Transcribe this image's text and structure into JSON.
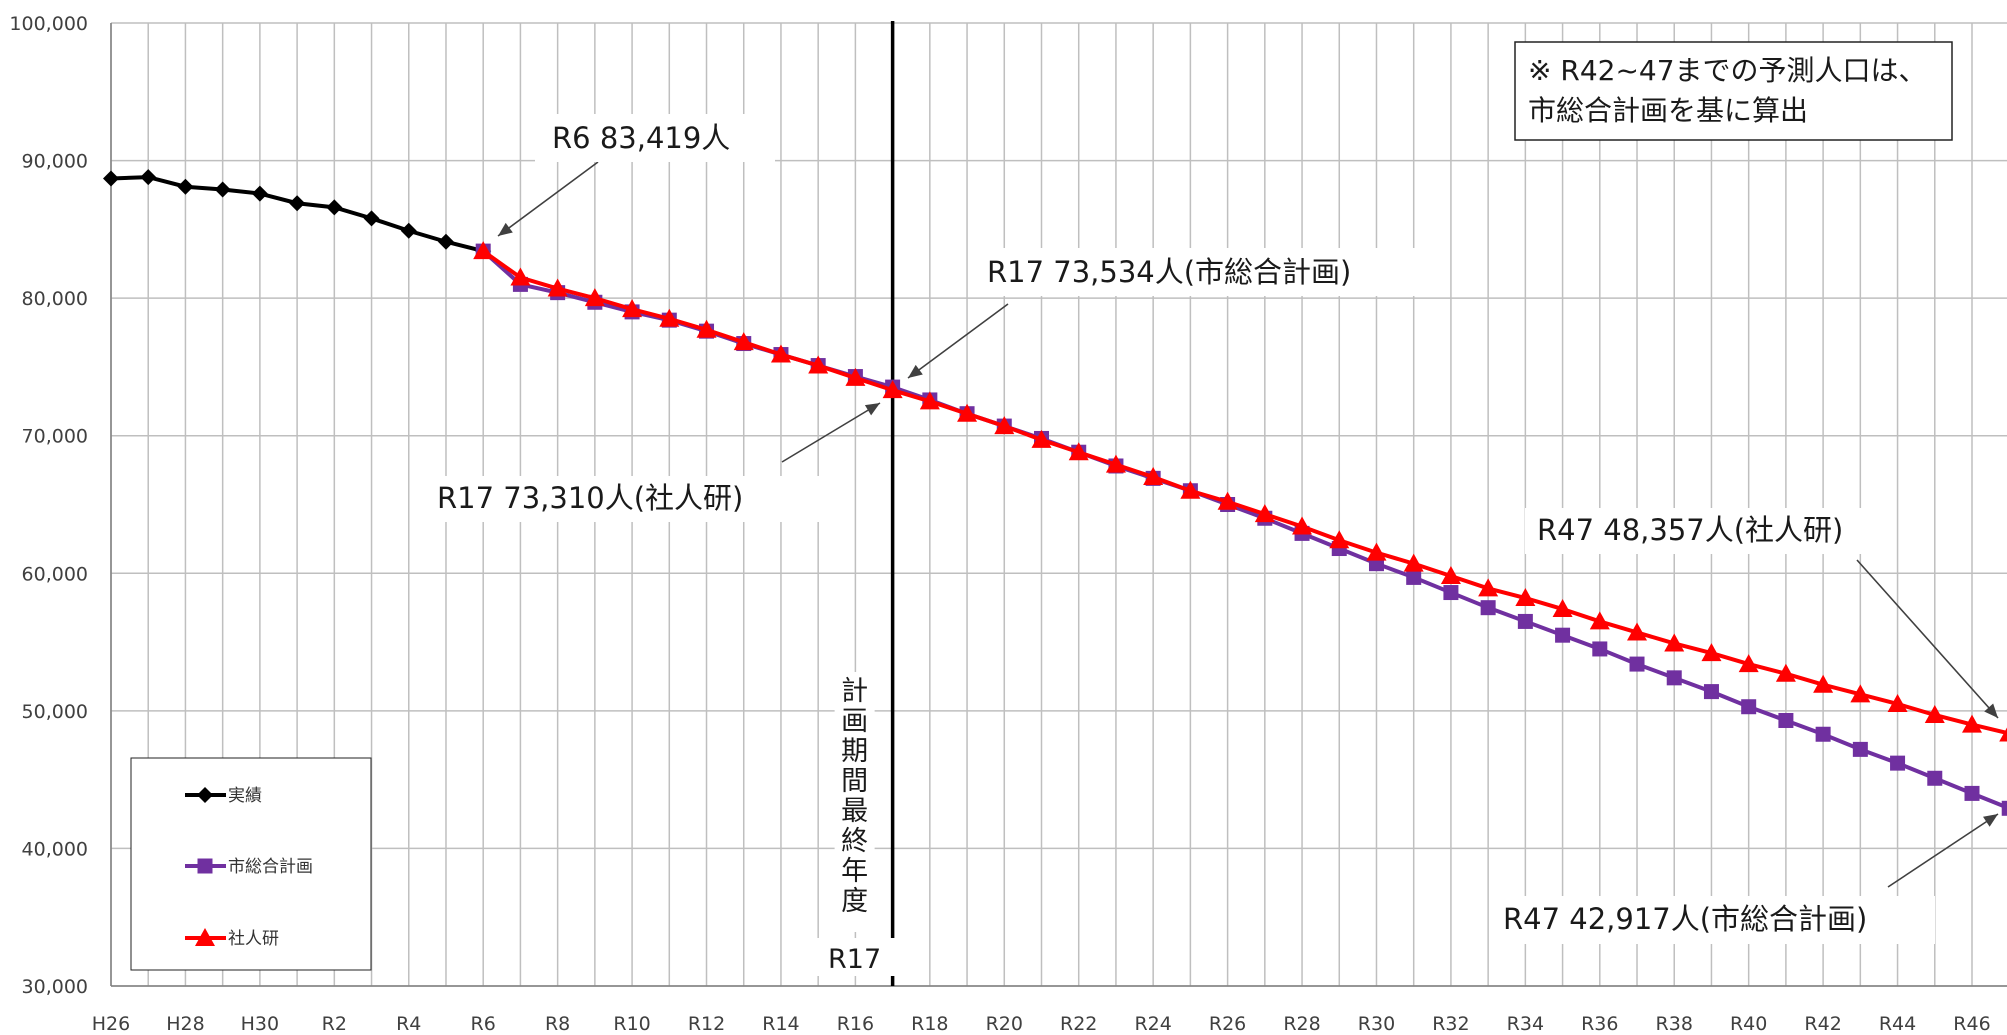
{
  "chart_data": {
    "type": "line",
    "title": "",
    "xlabel": "",
    "ylabel": "",
    "ylim": [
      30000,
      100000
    ],
    "yticks": [
      "30,000",
      "40,000",
      "50,000",
      "60,000",
      "70,000",
      "80,000",
      "90,000",
      "100,000"
    ],
    "x": [
      "H26",
      "H27",
      "H28",
      "H29",
      "H30",
      "R1",
      "R2",
      "R3",
      "R4",
      "R5",
      "R6",
      "R7",
      "R8",
      "R9",
      "R10",
      "R11",
      "R12",
      "R13",
      "R14",
      "R15",
      "R16",
      "R17",
      "R18",
      "R19",
      "R20",
      "R21",
      "R22",
      "R23",
      "R24",
      "R25",
      "R26",
      "R27",
      "R28",
      "R29",
      "R30",
      "R31",
      "R32",
      "R33",
      "R34",
      "R35",
      "R36",
      "R37",
      "R38",
      "R39",
      "R40",
      "R41",
      "R42",
      "R43",
      "R44",
      "R45",
      "R46",
      "R47"
    ],
    "xtick_labels": [
      "H26",
      "H28",
      "H30",
      "R2",
      "R4",
      "R6",
      "R8",
      "R10",
      "R12",
      "R14",
      "R16",
      "R18",
      "R20",
      "R22",
      "R24",
      "R26",
      "R28",
      "R30",
      "R32",
      "R34",
      "R36",
      "R38",
      "R40",
      "R42",
      "R44",
      "R46"
    ],
    "grid": true,
    "legend_position": "bottom-left",
    "series": [
      {
        "name": "実績",
        "color": "#000000",
        "marker": "diamond",
        "x": [
          "H26",
          "H27",
          "H28",
          "H29",
          "H30",
          "R1",
          "R2",
          "R3",
          "R4",
          "R5",
          "R6"
        ],
        "values": [
          88700,
          88800,
          88100,
          87900,
          87600,
          86900,
          86600,
          85800,
          84900,
          84100,
          83419
        ]
      },
      {
        "name": "市総合計画",
        "color": "#7030a0",
        "marker": "square",
        "x": [
          "R6",
          "R7",
          "R8",
          "R9",
          "R10",
          "R11",
          "R12",
          "R13",
          "R14",
          "R15",
          "R16",
          "R17",
          "R18",
          "R19",
          "R20",
          "R21",
          "R22",
          "R23",
          "R24",
          "R25",
          "R26",
          "R27",
          "R28",
          "R29",
          "R30",
          "R31",
          "R32",
          "R33",
          "R34",
          "R35",
          "R36",
          "R37",
          "R38",
          "R39",
          "R40",
          "R41",
          "R42",
          "R43",
          "R44",
          "R45",
          "R46",
          "R47"
        ],
        "values": [
          83419,
          81000,
          80400,
          79700,
          79000,
          78400,
          77600,
          76700,
          75900,
          75100,
          74300,
          73534,
          72600,
          71600,
          70700,
          69800,
          68800,
          67800,
          66900,
          66000,
          65000,
          64000,
          62900,
          61800,
          60700,
          59700,
          58600,
          57500,
          56500,
          55500,
          54500,
          53400,
          52400,
          51400,
          50300,
          49300,
          48300,
          47200,
          46200,
          45100,
          44000,
          42917
        ]
      },
      {
        "name": "社人研",
        "color": "#ff0000",
        "marker": "triangle",
        "x": [
          "R6",
          "R7",
          "R8",
          "R9",
          "R10",
          "R11",
          "R12",
          "R13",
          "R14",
          "R15",
          "R16",
          "R17",
          "R18",
          "R19",
          "R20",
          "R21",
          "R22",
          "R23",
          "R24",
          "R25",
          "R26",
          "R27",
          "R28",
          "R29",
          "R30",
          "R31",
          "R32",
          "R33",
          "R34",
          "R35",
          "R36",
          "R37",
          "R38",
          "R39",
          "R40",
          "R41",
          "R42",
          "R43",
          "R44",
          "R45",
          "R46",
          "R47"
        ],
        "values": [
          83419,
          81500,
          80700,
          80000,
          79200,
          78500,
          77700,
          76800,
          75900,
          75100,
          74200,
          73310,
          72500,
          71600,
          70700,
          69700,
          68800,
          67900,
          67000,
          66000,
          65200,
          64300,
          63400,
          62400,
          61500,
          60700,
          59800,
          58900,
          58200,
          57400,
          56500,
          55700,
          54900,
          54200,
          53400,
          52700,
          51900,
          51200,
          50500,
          49700,
          49000,
          48357
        ]
      }
    ],
    "annotations": [
      {
        "id": "r6",
        "text": "R6 83,419人"
      },
      {
        "id": "r17_city",
        "text": "R17 73,534人(市総合計画)"
      },
      {
        "id": "r17_ipss",
        "text": "R17 73,310人(社人研)"
      },
      {
        "id": "r47_ipss",
        "text": "R47 48,357人(社人研)"
      },
      {
        "id": "r47_city",
        "text": "R47 42,917人(市総合計画)"
      }
    ],
    "vertical_line": {
      "x": "R17",
      "label_chars": [
        "計",
        "画",
        "期",
        "間",
        "最",
        "終",
        "年",
        "度"
      ],
      "label_bottom": "R17"
    },
    "note": {
      "line1": "※ R42~47までの予測人口は、",
      "line2": "市総合計画を基に算出"
    }
  }
}
